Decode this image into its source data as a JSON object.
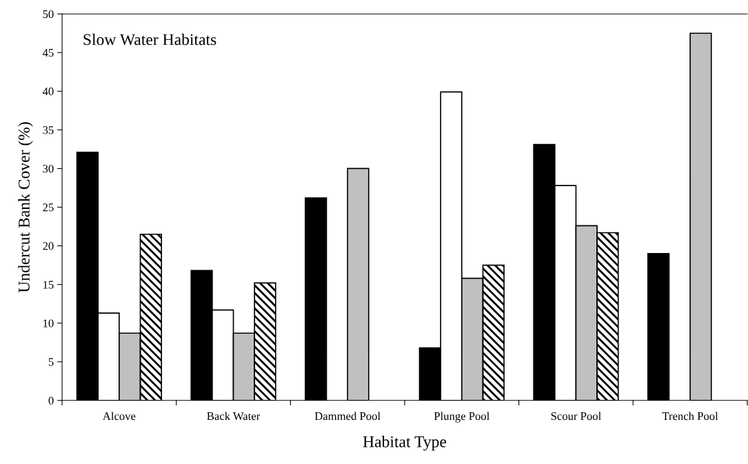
{
  "chart_data": {
    "type": "bar",
    "xlabel": "Habitat Type",
    "ylabel": "Undercut Bank Cover (%)",
    "annotations": [
      "Slow Water Habitats"
    ],
    "categories": [
      "Alcove",
      "Back Water",
      "Dammed Pool",
      "Plunge Pool",
      "Scour Pool",
      "Trench Pool"
    ],
    "series": [
      {
        "color": "#000000",
        "values": [
          32.1,
          16.8,
          26.2,
          6.8,
          33.1,
          19.0
        ]
      },
      {
        "color": "#ffffff",
        "values": [
          11.3,
          11.7,
          null,
          39.9,
          27.8,
          null
        ]
      },
      {
        "color": "#c0c0c0",
        "values": [
          8.7,
          8.7,
          30.0,
          15.8,
          22.6,
          47.5
        ]
      },
      {
        "color": "#000000",
        "values": [
          21.5,
          15.2,
          null,
          17.5,
          21.7,
          null
        ]
      }
    ],
    "ylim": [
      0,
      50
    ],
    "yticks": [
      0,
      5,
      10,
      15,
      20,
      25,
      30,
      35,
      40,
      45,
      50
    ],
    "grid": false,
    "legend": false
  }
}
